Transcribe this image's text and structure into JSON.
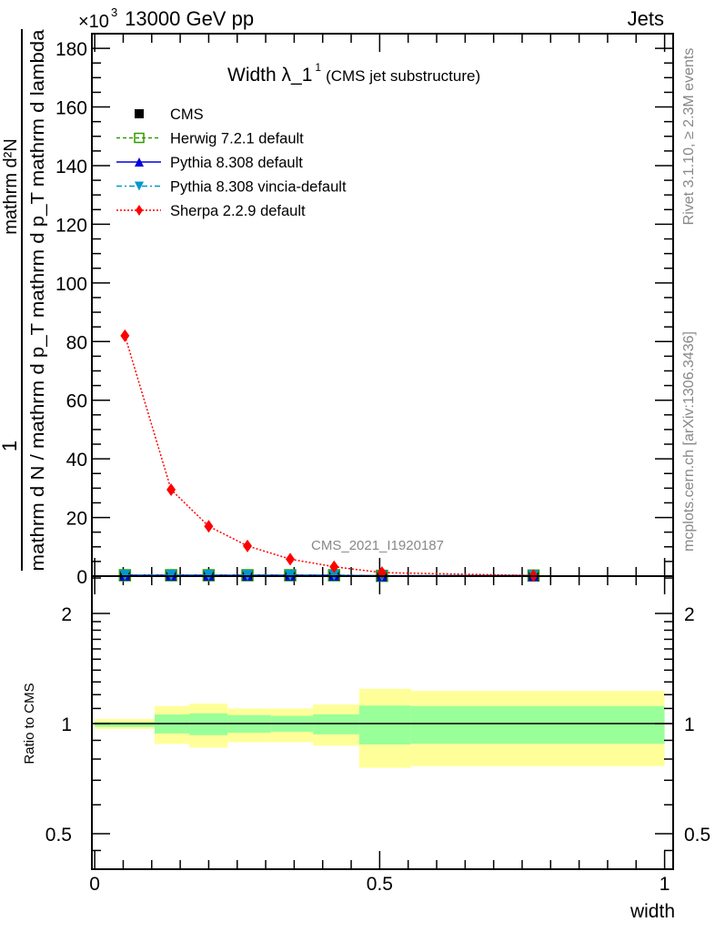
{
  "header": {
    "energy": "13000 GeV pp",
    "process": "Jets",
    "exponent_base": "×10",
    "exponent": "3"
  },
  "side": {
    "rivet": "Rivet 3.1.10, ≥ 2.3M events",
    "mcplots": "mcplots.cern.ch [arXiv:1306.3436]"
  },
  "chart_data": [
    {
      "type": "line",
      "title": "Width λ_1",
      "title_sup": "1",
      "subtitle": "(CMS jet substructure)",
      "analysis": "CMS_2021_I1920187",
      "ylabel_num1": "1",
      "ylabel_num2": "mathrm d²N",
      "ylabel_den": "mathrm d N / mathrm d p_T mathrm d p_T mathrm d lambda",
      "ylim": [
        0,
        185
      ],
      "yticks": [
        0,
        20,
        40,
        60,
        80,
        100,
        120,
        140,
        160,
        180
      ],
      "xlim": [
        -0.005,
        1.015
      ],
      "legend_position": "top-left",
      "bin_edges": [
        0,
        0.105,
        0.166,
        0.233,
        0.309,
        0.383,
        0.464,
        0.555,
        1.0
      ],
      "x": [
        0.053,
        0.134,
        0.2,
        0.268,
        0.343,
        0.42,
        0.504,
        0.77
      ],
      "series": [
        {
          "name": "CMS",
          "color": "#000000",
          "marker": "square",
          "values": [
            0.3,
            0.3,
            0.3,
            0.3,
            0.3,
            0.3,
            0.1,
            0.2
          ]
        },
        {
          "name": "Herwig 7.2.1 default",
          "color": "#339900",
          "marker": "open-square",
          "dash": "4,3",
          "values": [
            0.3,
            0.3,
            0.3,
            0.3,
            0.3,
            0.3,
            0.1,
            0.2
          ]
        },
        {
          "name": "Pythia 8.308 default",
          "color": "#0000dd",
          "marker": "triangle-up",
          "dash": "",
          "values": [
            0.3,
            0.3,
            0.3,
            0.3,
            0.3,
            0.3,
            0.1,
            0.2
          ]
        },
        {
          "name": "Pythia 8.308 vincia-default",
          "color": "#0099cc",
          "marker": "triangle-down",
          "dash": "6,3,2,3",
          "values": [
            0.3,
            0.3,
            0.3,
            0.3,
            0.3,
            0.3,
            0.1,
            0.2
          ]
        },
        {
          "name": "Sherpa 2.2.9 default",
          "color": "#ff0000",
          "marker": "diamond",
          "dash": "2,2",
          "values": [
            82,
            29.5,
            17,
            10.3,
            5.8,
            3.2,
            1.2,
            0.2
          ]
        }
      ]
    },
    {
      "type": "area",
      "ylabel": "Ratio to CMS",
      "xlabel": "width",
      "yscale": "log",
      "ylim": [
        0.4,
        2.53
      ],
      "yticks": [
        {
          "v": 0.5,
          "label": "0.5"
        },
        {
          "v": 1,
          "label": "1"
        },
        {
          "v": 2,
          "label": "2"
        }
      ],
      "xticks": [
        {
          "v": 0,
          "label": "0"
        },
        {
          "v": 0.5,
          "label": "0.5"
        },
        {
          "v": 1,
          "label": "1"
        }
      ],
      "bin_edges": [
        0,
        0.105,
        0.166,
        0.233,
        0.309,
        0.383,
        0.464,
        0.555,
        1.0
      ],
      "band_outer": {
        "color": "#ffff99",
        "lo": [
          0.966,
          0.88,
          0.86,
          0.89,
          0.89,
          0.87,
          0.757,
          0.765
        ],
        "hi": [
          1.03,
          1.117,
          1.134,
          1.1,
          1.1,
          1.128,
          1.245,
          1.229
        ]
      },
      "band_inner": {
        "color": "#99ff99",
        "lo": [
          0.98,
          0.94,
          0.93,
          0.944,
          0.95,
          0.935,
          0.877,
          0.881
        ],
        "hi": [
          1.01,
          1.059,
          1.067,
          1.055,
          1.05,
          1.06,
          1.12,
          1.117
        ]
      }
    }
  ]
}
